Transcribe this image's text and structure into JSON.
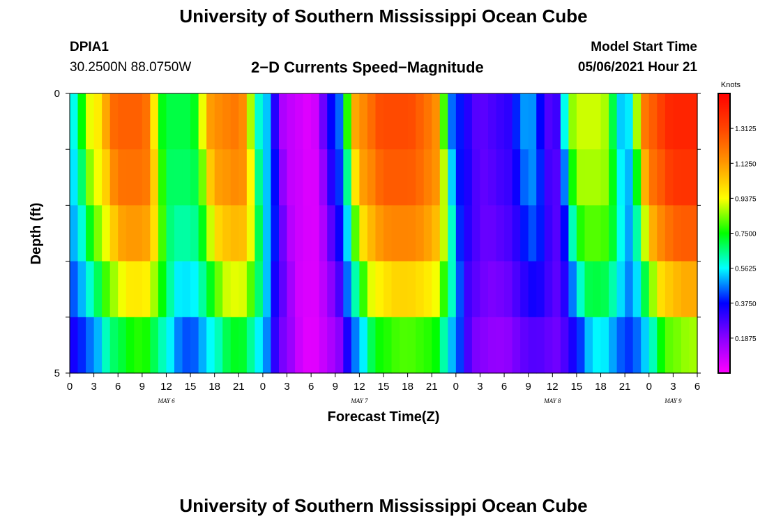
{
  "header": {
    "title": "University of Southern Mississippi Ocean Cube",
    "station_id": "DPIA1",
    "station_coords": "30.2500N  88.0750W",
    "chart_title": "2−D Currents Speed−Magnitude",
    "model_start_label": "Model Start Time",
    "model_start_value": "05/06/2021 Hour 21"
  },
  "footer": {
    "title": "University of Southern Mississippi Ocean Cube"
  },
  "chart_data": {
    "type": "heatmap",
    "title": "2−D Currents Speed−Magnitude",
    "xlabel": "Forecast Time(Z)",
    "ylabel": "Depth (ft)",
    "colorbar_label": "Knots",
    "x_tick_labels": [
      "0",
      "3",
      "6",
      "9",
      "12",
      "15",
      "18",
      "21",
      "0",
      "3",
      "6",
      "9",
      "12",
      "15",
      "18",
      "21",
      "0",
      "3",
      "6",
      "9",
      "12",
      "15",
      "18",
      "21",
      "0",
      "3",
      "6"
    ],
    "date_labels": [
      {
        "label": "MAY 6",
        "tick_index": 4
      },
      {
        "label": "MAY 7",
        "tick_index": 12
      },
      {
        "label": "MAY 8",
        "tick_index": 20
      },
      {
        "label": "MAY 9",
        "tick_index": 25
      }
    ],
    "y_tick_labels": [
      "0",
      "5"
    ],
    "y_range": [
      0,
      5
    ],
    "x_range_hours": [
      0,
      78
    ],
    "colorbar_ticks": [
      "1.3125",
      "1.1250",
      "0.9375",
      "0.7500",
      "0.5625",
      "0.3750",
      "0.1875"
    ],
    "color_range": [
      0.0,
      1.5
    ],
    "depth_rows": 5,
    "speed_profile_key_hours": [
      0,
      3,
      6,
      9,
      12,
      15,
      18,
      21,
      24,
      27,
      30,
      33,
      36,
      39,
      42,
      45,
      48,
      51,
      54,
      57,
      60,
      63,
      66,
      69,
      72,
      75,
      78
    ],
    "surface_speed_knots": [
      0.55,
      0.95,
      1.25,
      1.25,
      0.7,
      0.7,
      1.15,
      1.2,
      0.55,
      0.1,
      0.05,
      0.4,
      1.15,
      1.3,
      1.3,
      1.2,
      0.4,
      0.25,
      0.3,
      0.5,
      0.25,
      0.9,
      0.9,
      0.5,
      1.25,
      1.4,
      1.4
    ],
    "depth_decay_factors": [
      1.0,
      0.97,
      0.9,
      0.78,
      0.62,
      0.5
    ]
  }
}
